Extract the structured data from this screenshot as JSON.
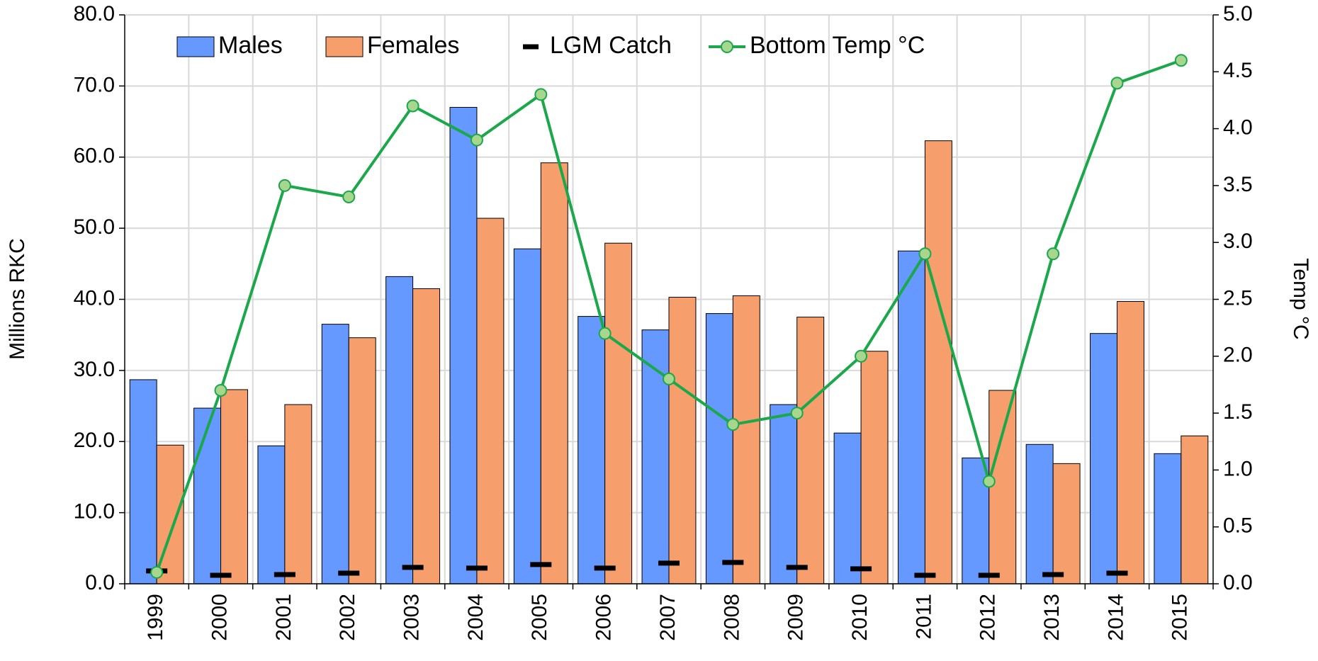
{
  "chart_data": {
    "type": "bar",
    "categories": [
      "1999",
      "2000",
      "2001",
      "2002",
      "2003",
      "2004",
      "2005",
      "2006",
      "2007",
      "2008",
      "2009",
      "2010",
      "2011",
      "2012",
      "2013",
      "2014",
      "2015"
    ],
    "series": [
      {
        "name": "Males",
        "type": "bar",
        "color": "#6699ff",
        "values": [
          28.7,
          24.7,
          19.4,
          36.5,
          43.2,
          67.0,
          47.1,
          37.6,
          35.7,
          38.0,
          25.2,
          21.2,
          46.8,
          17.7,
          19.6,
          35.2,
          18.3
        ]
      },
      {
        "name": "Females",
        "type": "bar",
        "color": "#f79f6c",
        "values": [
          19.5,
          27.3,
          25.2,
          34.6,
          41.5,
          51.4,
          59.2,
          47.9,
          40.3,
          40.5,
          37.5,
          32.7,
          62.3,
          27.2,
          16.9,
          39.7,
          20.8
        ]
      },
      {
        "name": "LGM Catch",
        "type": "dash",
        "color": "#000000",
        "values": [
          1.8,
          1.2,
          1.3,
          1.5,
          2.3,
          2.2,
          2.7,
          2.2,
          2.9,
          3.0,
          2.3,
          2.1,
          1.2,
          1.2,
          1.3,
          1.5,
          null
        ]
      },
      {
        "name": "Bottom Temp °C",
        "type": "line",
        "axis": "y2",
        "color": "#1aa84a",
        "marker_color": "#a9d68f",
        "values": [
          0.1,
          1.7,
          3.5,
          3.4,
          4.2,
          3.9,
          4.3,
          2.2,
          1.8,
          1.4,
          1.5,
          2.0,
          2.9,
          0.9,
          2.9,
          4.4,
          4.6
        ]
      }
    ],
    "ylabel": "Millions RKC",
    "y2label": "Temp °C",
    "ylim": [
      0,
      80
    ],
    "yticks": [
      {
        "value": 0,
        "label": "0.0"
      },
      {
        "value": 10,
        "label": "10.0"
      },
      {
        "value": 20,
        "label": "20.0"
      },
      {
        "value": 30,
        "label": "30.0"
      },
      {
        "value": 40,
        "label": "40.0"
      },
      {
        "value": 50,
        "label": "50.0"
      },
      {
        "value": 60,
        "label": "60.0"
      },
      {
        "value": 70,
        "label": "70.0"
      },
      {
        "value": 80,
        "label": "80.0"
      }
    ],
    "y2lim": [
      0,
      5
    ],
    "y2ticks": [
      {
        "value": 0,
        "label": "0.0"
      },
      {
        "value": 0.5,
        "label": "0.5"
      },
      {
        "value": 1,
        "label": "1.0"
      },
      {
        "value": 1.5,
        "label": "1.5"
      },
      {
        "value": 2,
        "label": "2.0"
      },
      {
        "value": 2.5,
        "label": "2.5"
      },
      {
        "value": 3,
        "label": "3.0"
      },
      {
        "value": 3.5,
        "label": "3.5"
      },
      {
        "value": 4,
        "label": "4.0"
      },
      {
        "value": 4.5,
        "label": "4.5"
      },
      {
        "value": 5,
        "label": "5.0"
      }
    ],
    "grid": true,
    "legend": "top"
  }
}
